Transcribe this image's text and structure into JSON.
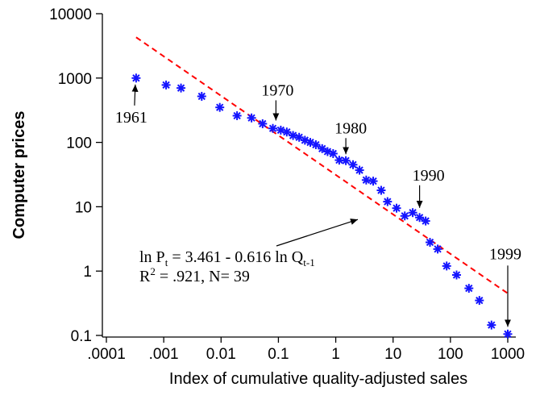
{
  "chart_data": {
    "type": "scatter",
    "xlabel": "Index of cumulative quality-adjusted sales",
    "ylabel": "Computer prices",
    "x_scale": "log",
    "y_scale": "log",
    "xlim": [
      0.0001,
      1000
    ],
    "ylim": [
      0.1,
      10000
    ],
    "x_ticks": [
      {
        "value": 0.0001,
        "label": ".0001"
      },
      {
        "value": 0.001,
        "label": ".001"
      },
      {
        "value": 0.01,
        "label": "0.01"
      },
      {
        "value": 0.1,
        "label": "0.1"
      },
      {
        "value": 1,
        "label": "1"
      },
      {
        "value": 10,
        "label": "10"
      },
      {
        "value": 100,
        "label": "100"
      },
      {
        "value": 1000,
        "label": "1000"
      }
    ],
    "y_ticks": [
      {
        "value": 0.1,
        "label": "0.1"
      },
      {
        "value": 1,
        "label": "1"
      },
      {
        "value": 10,
        "label": "10"
      },
      {
        "value": 100,
        "label": "100"
      },
      {
        "value": 1000,
        "label": "1000"
      },
      {
        "value": 10000,
        "label": "10000"
      }
    ],
    "grid": false,
    "marker_color": "#1414ff",
    "series": [
      {
        "marker": "asterisk",
        "points": [
          [
            0.00033,
            1000
          ],
          [
            0.0011,
            780
          ],
          [
            0.002,
            700
          ],
          [
            0.0046,
            520
          ],
          [
            0.0095,
            350
          ],
          [
            0.019,
            260
          ],
          [
            0.034,
            240
          ],
          [
            0.053,
            195
          ],
          [
            0.08,
            165
          ],
          [
            0.11,
            155
          ],
          [
            0.14,
            145
          ],
          [
            0.18,
            128
          ],
          [
            0.23,
            120
          ],
          [
            0.29,
            108
          ],
          [
            0.36,
            100
          ],
          [
            0.45,
            92
          ],
          [
            0.58,
            80
          ],
          [
            0.72,
            72
          ],
          [
            0.9,
            67
          ],
          [
            1.15,
            53
          ],
          [
            1.5,
            52
          ],
          [
            2.0,
            45
          ],
          [
            2.6,
            37
          ],
          [
            3.4,
            26
          ],
          [
            4.5,
            25
          ],
          [
            6.2,
            18
          ],
          [
            8.0,
            12
          ],
          [
            11.5,
            9.5
          ],
          [
            16,
            7.2
          ],
          [
            22,
            8.1
          ],
          [
            29,
            6.8
          ],
          [
            37,
            6.0
          ],
          [
            44,
            2.8
          ],
          [
            60,
            2.2
          ],
          [
            86,
            1.2
          ],
          [
            128,
            0.87
          ],
          [
            210,
            0.54
          ],
          [
            320,
            0.35
          ],
          [
            520,
            0.145
          ],
          [
            1000,
            0.105
          ]
        ]
      }
    ],
    "fit_line": {
      "color": "#ff0000",
      "style": "dashed",
      "x": [
        0.00033,
        1000
      ],
      "y": [
        4300,
        0.45
      ]
    },
    "annotations": {
      "year_1961": {
        "text": "1961",
        "x": 0.00033,
        "y": 1000
      },
      "year_1970": {
        "text": "1970",
        "x": 0.11,
        "y": 155
      },
      "year_1980": {
        "text": "1980",
        "x": 1.5,
        "y": 52
      },
      "year_1990": {
        "text": "1990",
        "x": 29,
        "y": 6.8
      },
      "year_1999": {
        "text": "1999",
        "x": 1000,
        "y": 0.105
      },
      "equation": {
        "ln": "ln P",
        "sub_t": "t",
        "rhs": " = 3.461 - 0.616 ln Q",
        "sub_t1": "t-1",
        "target_x": 2.0,
        "target_y": 8.0
      },
      "r_squared": {
        "r": "R",
        "sup": "2",
        "rest": " = .921, N= 39"
      }
    }
  }
}
